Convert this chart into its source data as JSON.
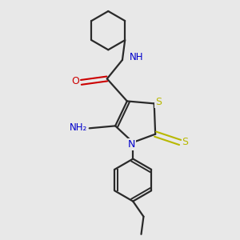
{
  "background_color": "#e8e8e8",
  "bond_color": "#2a2a2a",
  "atom_colors": {
    "S": "#b8b800",
    "N": "#0000cc",
    "O": "#cc0000",
    "C": "#2a2a2a"
  },
  "figure_size": [
    3.0,
    3.0
  ],
  "dpi": 100
}
